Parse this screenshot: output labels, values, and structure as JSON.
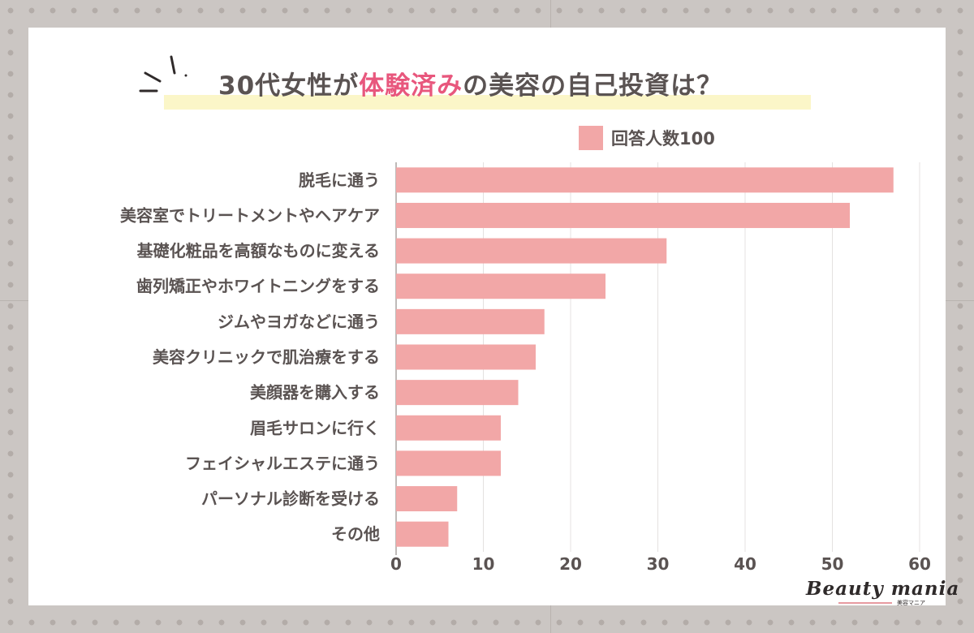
{
  "title": {
    "prefix": "30代女性が",
    "highlight": "体験済み",
    "suffix": "の美容の自己投資は？"
  },
  "legend": {
    "label": "回答人数100"
  },
  "colors": {
    "bar": "#f2a7a7",
    "title_accent": "#e8577d",
    "text": "#5a5352",
    "title_highlight": "#fbf6c8"
  },
  "logo": {
    "main": "Beauty mania",
    "sub": "美容マニア"
  },
  "chart_data": {
    "type": "bar",
    "orientation": "horizontal",
    "categories": [
      "脱毛に通う",
      "美容室でトリートメントやヘアケア",
      "基礎化粧品を高額なものに変える",
      "歯列矯正やホワイトニングをする",
      "ジムやヨガなどに通う",
      "美容クリニックで肌治療をする",
      "美顔器を購入する",
      "眉毛サロンに行く",
      "フェイシャルエステに通う",
      "パーソナル診断を受ける",
      "その他"
    ],
    "series": [
      {
        "name": "回答人数100",
        "values": [
          57,
          52,
          31,
          24,
          17,
          16,
          14,
          12,
          12,
          7,
          6
        ]
      }
    ],
    "xlim": [
      0,
      60
    ],
    "xticks": [
      "0",
      "10",
      "20",
      "30",
      "40",
      "50",
      "60"
    ],
    "grid": "vertical",
    "legend_position": "top-right"
  }
}
